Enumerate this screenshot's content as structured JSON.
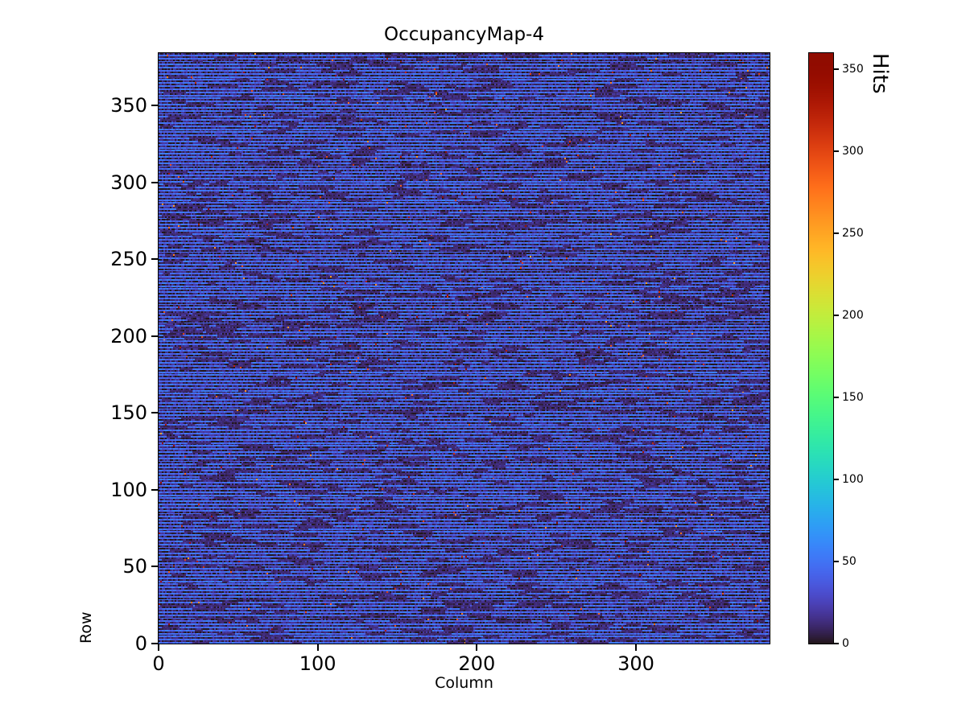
{
  "figure_title": "OccupancyMap-4",
  "chart_data": {
    "type": "heatmap",
    "title": "OccupancyMap-4",
    "xlabel": "Column",
    "ylabel": "Row",
    "colorbar_label": "Hits",
    "colormap": "turbo",
    "value_range": [
      0,
      360
    ],
    "grid": {
      "rows": 384,
      "cols": 384
    },
    "x_range": [
      0,
      384
    ],
    "y_range": [
      0,
      384
    ],
    "x_ticks": [
      0,
      100,
      200,
      300
    ],
    "y_ticks": [
      0,
      50,
      100,
      150,
      200,
      250,
      300,
      350
    ],
    "colorbar_ticks": [
      0,
      50,
      100,
      150,
      200,
      250,
      300,
      350
    ],
    "legend_position": "right-colorbar",
    "grid_lines": false,
    "pattern": {
      "description": "Pixel occupancy map: alternating horizontal stripes where even rows are low-blue occupancy and odd rows are near-zero (dark), blue rows broken by random dark dash gaps, plus sparse hot pixels (250-360 hits) appearing as dark-red speckles",
      "seed": 42,
      "blue_row_value": 46,
      "dark_row_value": 9,
      "noise_amplitude": 13,
      "dash_start_probability": 0.02,
      "dash_min_length": 4,
      "dash_max_length": 24,
      "hot_pixel_probability": 0.0035,
      "hot_value_min": 250,
      "hot_value_max": 360
    }
  }
}
